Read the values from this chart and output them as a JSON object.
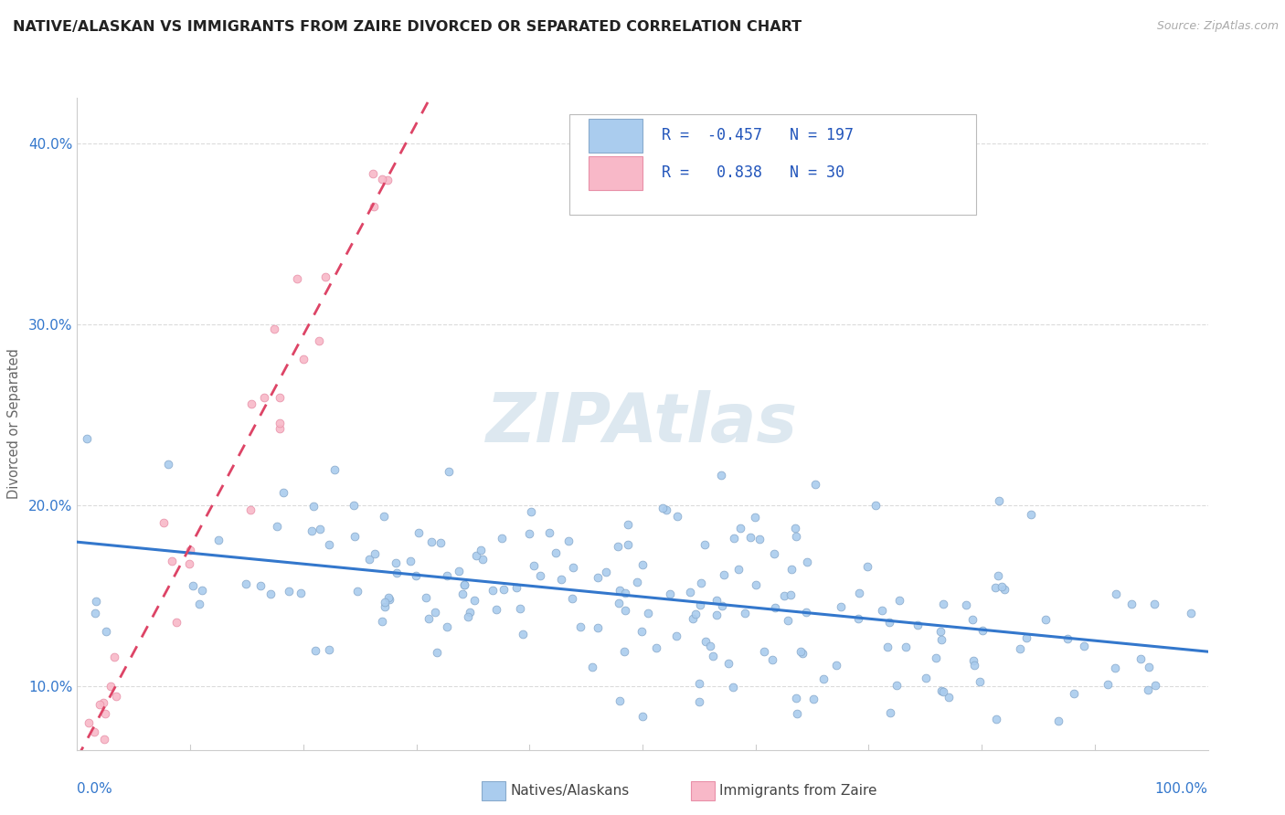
{
  "title": "NATIVE/ALASKAN VS IMMIGRANTS FROM ZAIRE DIVORCED OR SEPARATED CORRELATION CHART",
  "source_text": "Source: ZipAtlas.com",
  "ylabel": "Divorced or Separated",
  "ytick_vals": [
    0.1,
    0.2,
    0.3,
    0.4
  ],
  "ytick_labels": [
    "10.0%",
    "20.0%",
    "30.0%",
    "40.0%"
  ],
  "xlim": [
    0.0,
    1.0
  ],
  "ylim": [
    0.065,
    0.425
  ],
  "blue_R": -0.457,
  "blue_N": 197,
  "pink_R": 0.838,
  "pink_N": 30,
  "blue_color": "#aaccee",
  "blue_edge": "#88aacc",
  "pink_color": "#f8b8c8",
  "pink_edge": "#e890a8",
  "blue_line_color": "#3377cc",
  "pink_line_color": "#dd4466",
  "legend_R_color": "#2255bb",
  "watermark_color": "#dde8f0",
  "background_color": "#ffffff",
  "title_color": "#222222",
  "axis_label_color": "#3377cc",
  "source_color": "#aaaaaa",
  "grid_color": "#cccccc"
}
